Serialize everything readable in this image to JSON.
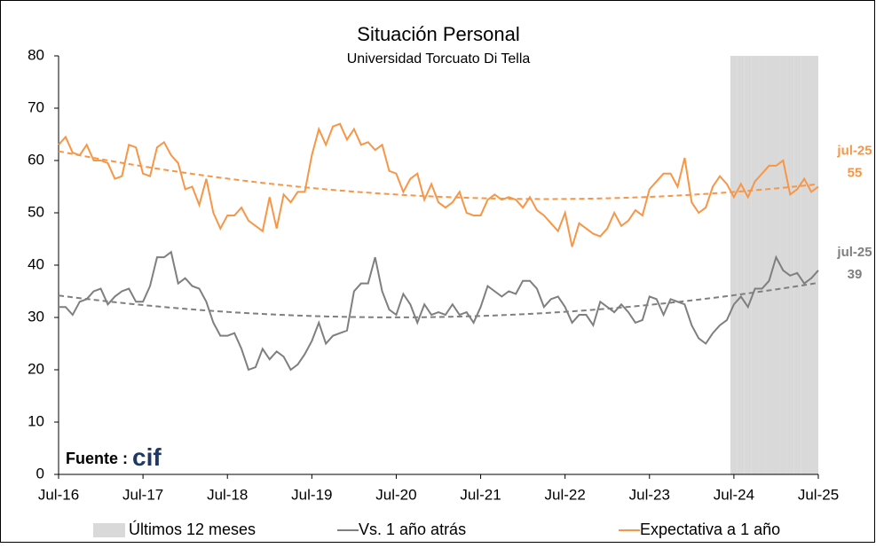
{
  "chart_data": {
    "type": "line",
    "title": "Situación Personal",
    "subtitle": "Universidad Torcuato Di Tella",
    "source": "Fuente : ",
    "source_logo": "cif",
    "categories": [
      "Jul-16",
      null,
      null,
      null,
      null,
      null,
      null,
      null,
      null,
      null,
      null,
      null,
      "Jul-17",
      null,
      null,
      null,
      null,
      null,
      null,
      null,
      null,
      null,
      null,
      null,
      "Jul-18",
      null,
      null,
      null,
      null,
      null,
      null,
      null,
      null,
      null,
      null,
      null,
      "Jul-19",
      null,
      null,
      null,
      null,
      null,
      null,
      null,
      null,
      null,
      null,
      null,
      "Jul-20",
      null,
      null,
      null,
      null,
      null,
      null,
      null,
      null,
      null,
      null,
      null,
      "Jul-21",
      null,
      null,
      null,
      null,
      null,
      null,
      null,
      null,
      null,
      null,
      null,
      "Jul-22",
      null,
      null,
      null,
      null,
      null,
      null,
      null,
      null,
      null,
      null,
      null,
      "Jul-23",
      null,
      null,
      null,
      null,
      null,
      null,
      null,
      null,
      null,
      null,
      null,
      "Jul-24",
      null,
      null,
      null,
      null,
      null,
      null,
      null,
      null,
      null,
      null,
      null,
      "Jul-25"
    ],
    "ylim": [
      0,
      80
    ],
    "yticks": [
      0,
      10,
      20,
      30,
      40,
      50,
      60,
      70,
      80
    ],
    "trendline": true,
    "series": [
      {
        "name": "Últimos 12 meses",
        "color": "#d9d9d9",
        "style": "band",
        "values": [
          null,
          null,
          null,
          null,
          null,
          null,
          null,
          null,
          null,
          null,
          null,
          null,
          null,
          null,
          null,
          null,
          null,
          null,
          null,
          null,
          null,
          null,
          null,
          null,
          null,
          null,
          null,
          null,
          null,
          null,
          null,
          null,
          null,
          null,
          null,
          null,
          null,
          null,
          null,
          null,
          null,
          null,
          null,
          null,
          null,
          null,
          null,
          null,
          null,
          null,
          null,
          null,
          null,
          null,
          null,
          null,
          null,
          null,
          null,
          null,
          null,
          null,
          null,
          null,
          null,
          null,
          null,
          null,
          null,
          null,
          null,
          null,
          null,
          null,
          null,
          null,
          null,
          null,
          null,
          null,
          null,
          null,
          null,
          null,
          null,
          null,
          null,
          null,
          null,
          null,
          null,
          null,
          null,
          null,
          null,
          null,
          80,
          80,
          80,
          80,
          80,
          80,
          80,
          80,
          80,
          80,
          80,
          80,
          80
        ]
      },
      {
        "name": "Vs. 1 año atrás",
        "color": "#7f7f7f",
        "style": "line",
        "values": [
          32,
          32,
          30.5,
          33,
          33.5,
          35,
          35.5,
          32.5,
          34,
          35,
          35.5,
          33,
          33,
          36,
          41.5,
          41.5,
          42.5,
          36.5,
          37.5,
          36,
          35.5,
          33,
          29,
          26.5,
          26.5,
          27,
          24,
          20,
          20.5,
          24,
          22,
          23.5,
          22.5,
          20,
          21,
          23,
          25.5,
          29,
          25,
          26.5,
          27,
          27.5,
          35,
          36.5,
          36.5,
          41.5,
          35,
          31.5,
          30.5,
          34.5,
          32.5,
          29,
          32.5,
          30.5,
          31,
          30.5,
          32.5,
          30.5,
          31,
          29,
          32,
          36,
          35,
          34,
          35,
          34.5,
          37,
          37,
          35.5,
          32,
          33.5,
          34,
          32,
          29,
          30.5,
          30.5,
          28.5,
          33,
          32,
          31,
          32.5,
          31,
          29,
          29.5,
          34,
          33.5,
          30.5,
          33.5,
          33,
          32.5,
          28.5,
          26,
          25,
          27,
          28.5,
          29.5,
          32.5,
          34,
          32,
          35.5,
          35.5,
          37,
          41.5,
          39,
          38,
          38.5,
          36.5,
          37.5,
          39
        ]
      },
      {
        "name": "Expectativa a 1 año",
        "color": "#f79646",
        "style": "line",
        "values": [
          63,
          64.5,
          61.5,
          61,
          63,
          60,
          60,
          59.5,
          56.5,
          57,
          63,
          62.5,
          57.5,
          57,
          62.5,
          63.5,
          61,
          59.5,
          54.5,
          55,
          51.5,
          56.5,
          50,
          47,
          49.5,
          49.5,
          51,
          48.5,
          47.5,
          46.5,
          53,
          47,
          53.5,
          52,
          54,
          54,
          61,
          66,
          63,
          66.5,
          67,
          64,
          66,
          63,
          63.5,
          62,
          63,
          58,
          57.5,
          54,
          56.5,
          57.5,
          52.5,
          55.5,
          52,
          51,
          52,
          54,
          50,
          49.5,
          49.5,
          52.5,
          53.5,
          52.5,
          53,
          52.5,
          51,
          53,
          50.5,
          49.5,
          48,
          46.5,
          50,
          43.5,
          48,
          47,
          46,
          45.5,
          47,
          50,
          47.5,
          48.5,
          50.5,
          49.5,
          54.5,
          56,
          57.5,
          57.5,
          55,
          60.5,
          52,
          50,
          51,
          55,
          57,
          55.5,
          53,
          55.5,
          53,
          56,
          57.5,
          59,
          59,
          60,
          53.5,
          54.5,
          56.5,
          54,
          55
        ]
      }
    ],
    "annotations": [
      {
        "text": "jul-25",
        "value": 55,
        "color": "#f79646"
      },
      {
        "text": "jul-25",
        "value": 39,
        "color": "#7f7f7f"
      }
    ]
  }
}
